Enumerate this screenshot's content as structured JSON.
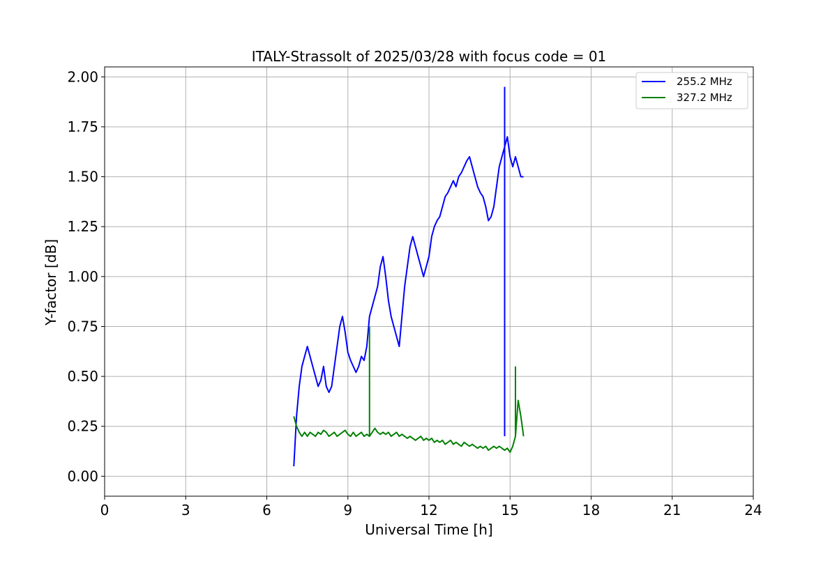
{
  "chart_data": {
    "type": "line",
    "title": "ITALY-Strassolt of 2025/03/28 with focus code = 01",
    "xlabel": "Universal Time [h]",
    "ylabel": "Y-factor [dB]",
    "xlim": [
      0,
      24
    ],
    "ylim": [
      -0.1,
      2.05
    ],
    "x_ticks": [
      0,
      3,
      6,
      9,
      12,
      15,
      18,
      21,
      24
    ],
    "x_tick_labels": [
      "0",
      "3",
      "6",
      "9",
      "12",
      "15",
      "18",
      "21",
      "24"
    ],
    "y_ticks": [
      0.0,
      0.25,
      0.5,
      0.75,
      1.0,
      1.25,
      1.5,
      1.75,
      2.0
    ],
    "y_tick_labels": [
      "0.00",
      "0.25",
      "0.50",
      "0.75",
      "1.00",
      "1.25",
      "1.50",
      "1.75",
      "2.00"
    ],
    "grid": true,
    "legend_position": "top-right",
    "series": [
      {
        "name": "255.2 MHz",
        "color": "#0000ff",
        "x": [
          7.0,
          7.1,
          7.2,
          7.3,
          7.4,
          7.5,
          7.6,
          7.7,
          7.8,
          7.9,
          8.0,
          8.1,
          8.2,
          8.3,
          8.4,
          8.5,
          8.6,
          8.7,
          8.8,
          8.9,
          9.0,
          9.1,
          9.2,
          9.3,
          9.4,
          9.5,
          9.6,
          9.7,
          9.8,
          9.9,
          10.0,
          10.1,
          10.2,
          10.3,
          10.4,
          10.5,
          10.6,
          10.7,
          10.8,
          10.9,
          11.0,
          11.1,
          11.2,
          11.3,
          11.4,
          11.5,
          11.6,
          11.7,
          11.8,
          11.9,
          12.0,
          12.1,
          12.2,
          12.3,
          12.4,
          12.5,
          12.6,
          12.7,
          12.8,
          12.9,
          13.0,
          13.1,
          13.2,
          13.3,
          13.4,
          13.5,
          13.6,
          13.7,
          13.8,
          13.9,
          14.0,
          14.1,
          14.2,
          14.3,
          14.4,
          14.5,
          14.6,
          14.7,
          14.8,
          14.9,
          15.0,
          15.1,
          15.2,
          15.3,
          15.4,
          15.5
        ],
        "y": [
          0.05,
          0.3,
          0.45,
          0.55,
          0.6,
          0.65,
          0.6,
          0.55,
          0.5,
          0.45,
          0.48,
          0.55,
          0.45,
          0.42,
          0.45,
          0.55,
          0.65,
          0.75,
          0.8,
          0.72,
          0.62,
          0.58,
          0.55,
          0.52,
          0.55,
          0.6,
          0.58,
          0.65,
          0.8,
          0.85,
          0.9,
          0.95,
          1.05,
          1.1,
          1.0,
          0.88,
          0.8,
          0.75,
          0.7,
          0.65,
          0.8,
          0.95,
          1.05,
          1.15,
          1.2,
          1.15,
          1.1,
          1.05,
          1.0,
          1.05,
          1.1,
          1.2,
          1.25,
          1.28,
          1.3,
          1.35,
          1.4,
          1.42,
          1.45,
          1.48,
          1.45,
          1.5,
          1.52,
          1.55,
          1.58,
          1.6,
          1.55,
          1.5,
          1.45,
          1.42,
          1.4,
          1.35,
          1.28,
          1.3,
          1.35,
          1.45,
          1.55,
          1.6,
          1.65,
          1.7,
          1.6,
          1.55,
          1.6,
          1.55,
          1.5,
          1.5
        ]
      },
      {
        "name": "327.2 MHz",
        "color": "#008000",
        "x": [
          7.0,
          7.1,
          7.2,
          7.3,
          7.4,
          7.5,
          7.6,
          7.7,
          7.8,
          7.9,
          8.0,
          8.1,
          8.2,
          8.3,
          8.4,
          8.5,
          8.6,
          8.7,
          8.8,
          8.9,
          9.0,
          9.1,
          9.2,
          9.3,
          9.4,
          9.5,
          9.6,
          9.7,
          9.8,
          9.9,
          10.0,
          10.1,
          10.2,
          10.3,
          10.4,
          10.5,
          10.6,
          10.7,
          10.8,
          10.9,
          11.0,
          11.1,
          11.2,
          11.3,
          11.4,
          11.5,
          11.6,
          11.7,
          11.8,
          11.9,
          12.0,
          12.1,
          12.2,
          12.3,
          12.4,
          12.5,
          12.6,
          12.7,
          12.8,
          12.9,
          13.0,
          13.1,
          13.2,
          13.3,
          13.4,
          13.5,
          13.6,
          13.7,
          13.8,
          13.9,
          14.0,
          14.1,
          14.2,
          14.3,
          14.4,
          14.5,
          14.6,
          14.7,
          14.8,
          14.9,
          15.0,
          15.1,
          15.2,
          15.3,
          15.4,
          15.5
        ],
        "y": [
          0.3,
          0.25,
          0.22,
          0.2,
          0.22,
          0.2,
          0.22,
          0.21,
          0.2,
          0.22,
          0.21,
          0.23,
          0.22,
          0.2,
          0.21,
          0.22,
          0.2,
          0.21,
          0.22,
          0.23,
          0.21,
          0.2,
          0.22,
          0.2,
          0.21,
          0.22,
          0.2,
          0.21,
          0.2,
          0.22,
          0.24,
          0.22,
          0.21,
          0.22,
          0.21,
          0.22,
          0.2,
          0.21,
          0.22,
          0.2,
          0.21,
          0.2,
          0.19,
          0.2,
          0.19,
          0.18,
          0.19,
          0.2,
          0.18,
          0.19,
          0.18,
          0.19,
          0.17,
          0.18,
          0.17,
          0.18,
          0.16,
          0.17,
          0.18,
          0.16,
          0.17,
          0.16,
          0.15,
          0.17,
          0.16,
          0.15,
          0.16,
          0.15,
          0.14,
          0.15,
          0.14,
          0.15,
          0.13,
          0.14,
          0.15,
          0.14,
          0.15,
          0.14,
          0.13,
          0.14,
          0.12,
          0.15,
          0.2,
          0.38,
          0.3,
          0.2
        ]
      }
    ],
    "annotations": [
      {
        "series": "255.2 MHz",
        "x": 14.8,
        "y": 1.95,
        "label": ""
      },
      {
        "series": "327.2 MHz",
        "x": 9.8,
        "y": 0.75,
        "label": ""
      },
      {
        "series": "327.2 MHz",
        "x": 15.2,
        "y": 0.55,
        "label": ""
      }
    ]
  }
}
